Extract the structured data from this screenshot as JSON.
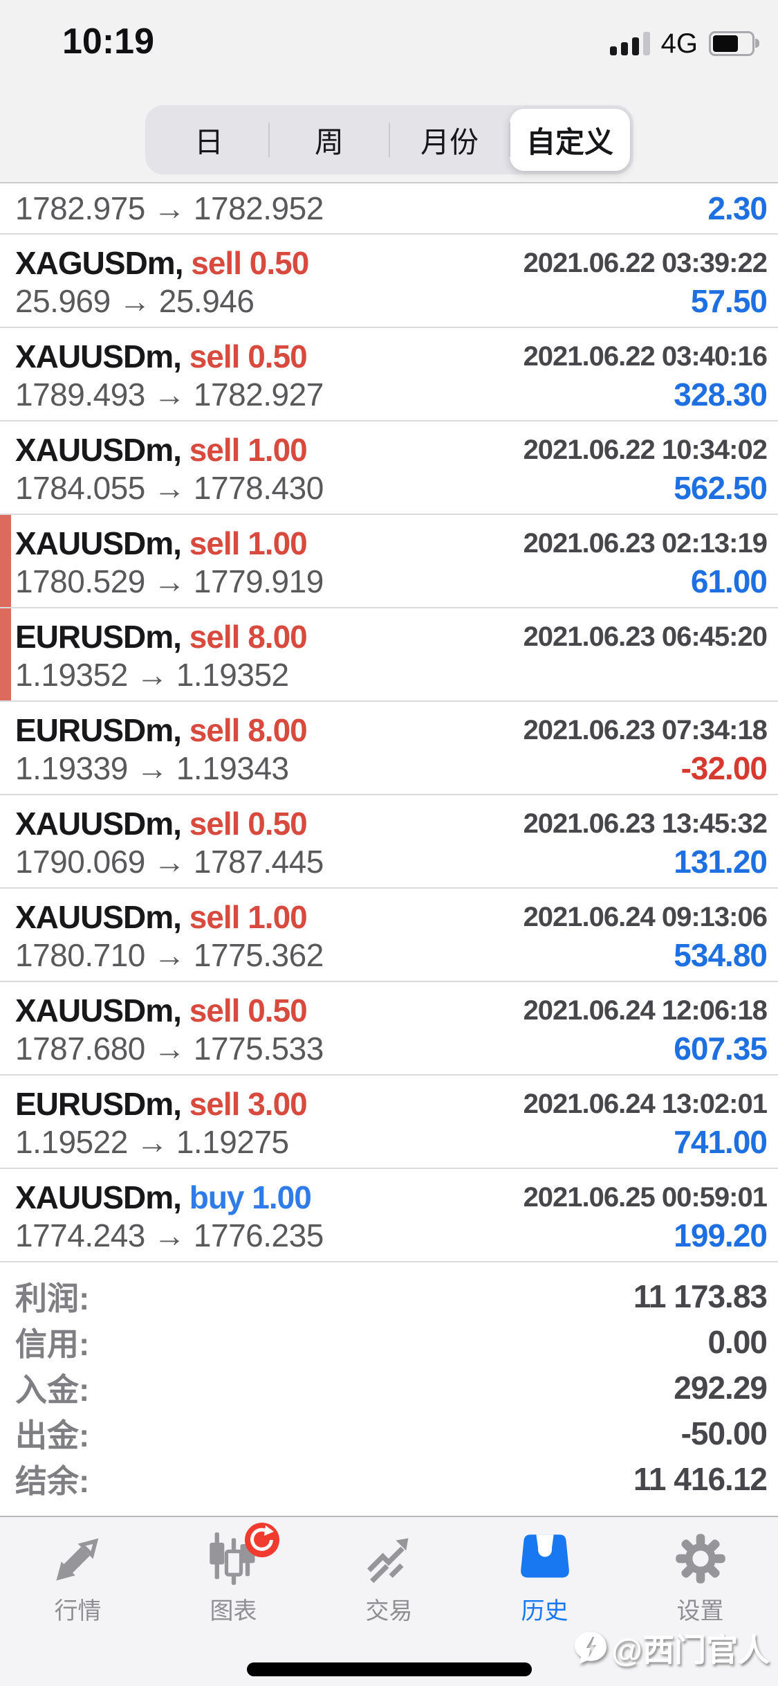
{
  "status_bar": {
    "time": "10:19",
    "network": "4G",
    "signal_bars_filled": 3,
    "signal_bars_total": 4,
    "battery_fill_visual": "65%"
  },
  "filter_tabs": {
    "options": [
      "日",
      "周",
      "月份",
      "自定义"
    ],
    "selected_index": 3
  },
  "trades": [
    {
      "partial": true,
      "symbol": "",
      "side": "",
      "volume": "",
      "datetime": "",
      "open": "1782.975",
      "close": "1782.952",
      "profit": "2.30",
      "accent": false
    },
    {
      "partial": false,
      "symbol": "XAGUSDm",
      "side": "sell",
      "volume": "0.50",
      "datetime": "2021.06.22 03:39:22",
      "open": "25.969",
      "close": "25.946",
      "profit": "57.50",
      "accent": false
    },
    {
      "partial": false,
      "symbol": "XAUUSDm",
      "side": "sell",
      "volume": "0.50",
      "datetime": "2021.06.22 03:40:16",
      "open": "1789.493",
      "close": "1782.927",
      "profit": "328.30",
      "accent": false
    },
    {
      "partial": false,
      "symbol": "XAUUSDm",
      "side": "sell",
      "volume": "1.00",
      "datetime": "2021.06.22 10:34:02",
      "open": "1784.055",
      "close": "1778.430",
      "profit": "562.50",
      "accent": false
    },
    {
      "partial": false,
      "symbol": "XAUUSDm",
      "side": "sell",
      "volume": "1.00",
      "datetime": "2021.06.23 02:13:19",
      "open": "1780.529",
      "close": "1779.919",
      "profit": "61.00",
      "accent": true
    },
    {
      "partial": false,
      "symbol": "EURUSDm",
      "side": "sell",
      "volume": "8.00",
      "datetime": "2021.06.23 06:45:20",
      "open": "1.19352",
      "close": "1.19352",
      "profit": "",
      "accent": true
    },
    {
      "partial": false,
      "symbol": "EURUSDm",
      "side": "sell",
      "volume": "8.00",
      "datetime": "2021.06.23 07:34:18",
      "open": "1.19339",
      "close": "1.19343",
      "profit": "-32.00",
      "accent": false
    },
    {
      "partial": false,
      "symbol": "XAUUSDm",
      "side": "sell",
      "volume": "0.50",
      "datetime": "2021.06.23 13:45:32",
      "open": "1790.069",
      "close": "1787.445",
      "profit": "131.20",
      "accent": false
    },
    {
      "partial": false,
      "symbol": "XAUUSDm",
      "side": "sell",
      "volume": "1.00",
      "datetime": "2021.06.24 09:13:06",
      "open": "1780.710",
      "close": "1775.362",
      "profit": "534.80",
      "accent": false
    },
    {
      "partial": false,
      "symbol": "XAUUSDm",
      "side": "sell",
      "volume": "0.50",
      "datetime": "2021.06.24 12:06:18",
      "open": "1787.680",
      "close": "1775.533",
      "profit": "607.35",
      "accent": false
    },
    {
      "partial": false,
      "symbol": "EURUSDm",
      "side": "sell",
      "volume": "3.00",
      "datetime": "2021.06.24 13:02:01",
      "open": "1.19522",
      "close": "1.19275",
      "profit": "741.00",
      "accent": false
    },
    {
      "partial": false,
      "symbol": "XAUUSDm",
      "side": "buy",
      "volume": "1.00",
      "datetime": "2021.06.25 00:59:01",
      "open": "1774.243",
      "close": "1776.235",
      "profit": "199.20",
      "accent": false
    }
  ],
  "summary": [
    {
      "label": "利润:",
      "value": "11 173.83"
    },
    {
      "label": "信用:",
      "value": "0.00"
    },
    {
      "label": "入金:",
      "value": "292.29"
    },
    {
      "label": "出金:",
      "value": "-50.00"
    },
    {
      "label": "结余:",
      "value": "11 416.12"
    }
  ],
  "tab_bar": {
    "items": [
      {
        "label": "行情",
        "icon": "quotes-icon"
      },
      {
        "label": "图表",
        "icon": "charts-icon",
        "badge": "refresh-badge"
      },
      {
        "label": "交易",
        "icon": "trade-icon"
      },
      {
        "label": "历史",
        "icon": "history-icon"
      },
      {
        "label": "设置",
        "icon": "settings-icon"
      }
    ],
    "selected_index": 3
  },
  "watermark": {
    "logo": "lightning-bubble-icon",
    "text": "@西门官人"
  },
  "colors": {
    "sell_red": "#D8493E",
    "buy_blue": "#2E7BE9",
    "profit_blue": "#1D6FE2",
    "loss_red": "#D8392E",
    "row_accent_bar": "#DD6B5D",
    "tab_inactive_gray": "#96969A",
    "tab_active_blue": "#1778F2",
    "badge_red": "#F23B2F",
    "tabbar_bg": "#F4F4F6"
  }
}
